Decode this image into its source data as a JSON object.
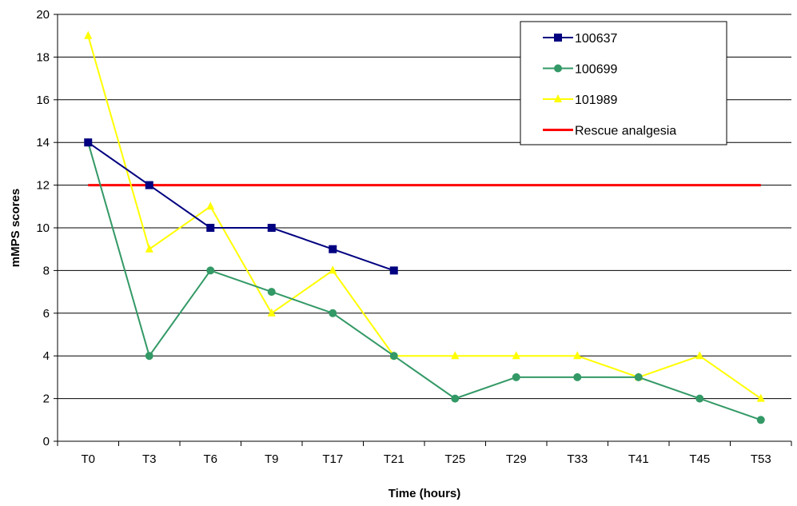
{
  "chart_data": {
    "type": "line",
    "title": "",
    "xlabel": "Time (hours)",
    "ylabel": "mMPS scores",
    "ylim": [
      0,
      20
    ],
    "yticks": [
      0,
      2,
      4,
      6,
      8,
      10,
      12,
      14,
      16,
      18,
      20
    ],
    "grid": "horizontal",
    "legend_position": "top-right",
    "categories": [
      "T0",
      "T3",
      "T6",
      "T9",
      "T17",
      "T21",
      "T25",
      "T29",
      "T33",
      "T41",
      "T45",
      "T53"
    ],
    "series": [
      {
        "name": "100637",
        "color": "#000080",
        "marker": "square",
        "values": [
          14,
          12,
          10,
          10,
          9,
          8,
          null,
          null,
          null,
          null,
          null,
          null
        ]
      },
      {
        "name": "100699",
        "color": "#339966",
        "marker": "circle",
        "values": [
          14,
          4,
          8,
          7,
          6,
          4,
          2,
          3,
          3,
          3,
          2,
          1
        ]
      },
      {
        "name": "101989",
        "color": "#ffff00",
        "marker": "triangle",
        "values": [
          19,
          9,
          11,
          6,
          8,
          4,
          4,
          4,
          4,
          3,
          4,
          2
        ]
      },
      {
        "name": "Rescue analgesia",
        "color": "#ff0000",
        "marker": "none",
        "values": [
          12,
          12,
          12,
          12,
          12,
          12,
          12,
          12,
          12,
          12,
          12,
          12
        ]
      }
    ]
  }
}
